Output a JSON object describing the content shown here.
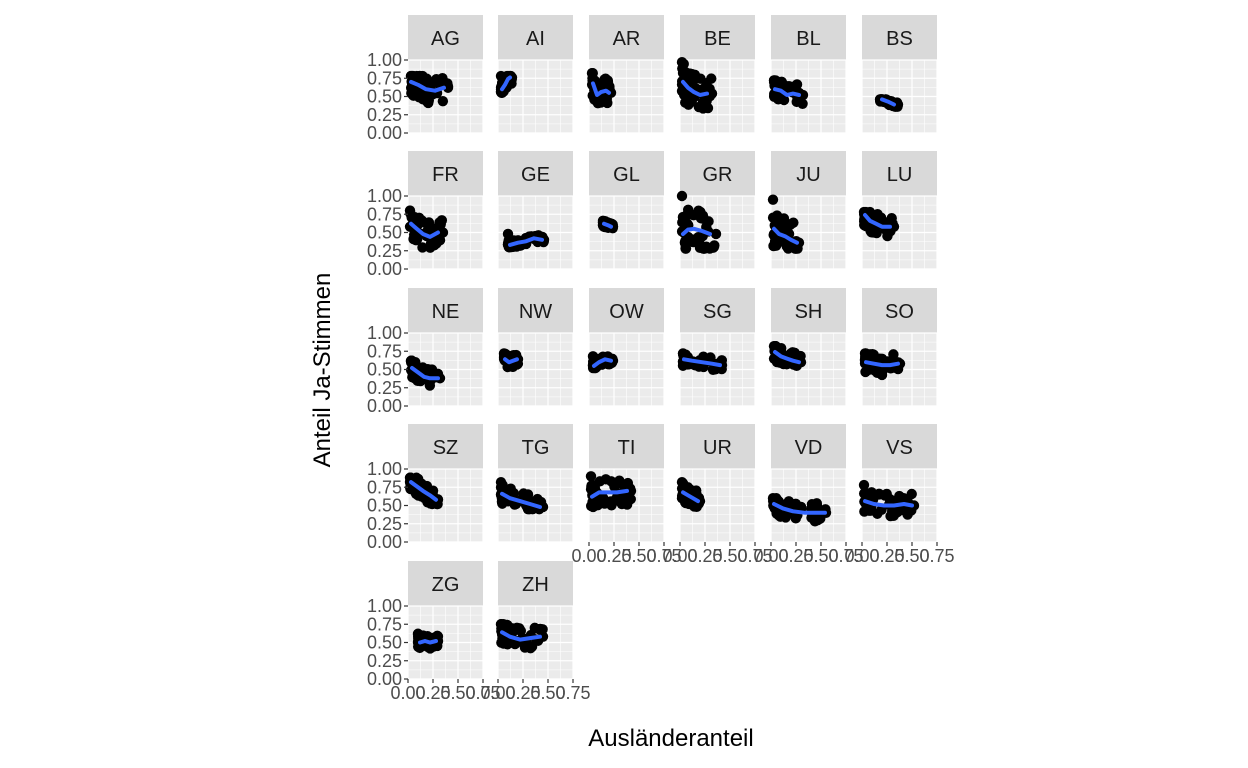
{
  "chart_data": {
    "type": "scatter",
    "facet_layout": "wrap",
    "ncol": 6,
    "xlabel": "Ausländeranteil",
    "ylabel": "Anteil Ja-Stimmen",
    "xlim": [
      0,
      0.75
    ],
    "ylim": [
      0,
      1
    ],
    "x_ticks": [
      0,
      0.25,
      0.5,
      0.75
    ],
    "x_tick_labels": [
      "0.00",
      "0.25",
      "0.50",
      "0.75"
    ],
    "y_ticks": [
      0,
      0.25,
      0.5,
      0.75,
      1
    ],
    "y_tick_labels": [
      "0.00",
      "0.25",
      "0.50",
      "0.75",
      "1.00"
    ],
    "grid": true,
    "smooth_color": "#3366FF",
    "point_color": "#000000",
    "panel_bg": "#EBEBEB",
    "strip_bg": "#D9D9D9",
    "panels": [
      {
        "label": "AG",
        "x_range": [
          0.03,
          0.4
        ],
        "y_range": [
          0.28,
          0.78
        ],
        "smooth": [
          [
            0.03,
            0.7
          ],
          [
            0.1,
            0.66
          ],
          [
            0.18,
            0.6
          ],
          [
            0.27,
            0.58
          ],
          [
            0.36,
            0.62
          ]
        ]
      },
      {
        "label": "AI",
        "x_range": [
          0.03,
          0.14
        ],
        "y_range": [
          0.55,
          0.78
        ],
        "smooth": [
          [
            0.04,
            0.6
          ],
          [
            0.07,
            0.66
          ],
          [
            0.1,
            0.74
          ],
          [
            0.12,
            0.76
          ]
        ]
      },
      {
        "label": "AR",
        "x_range": [
          0.03,
          0.22
        ],
        "y_range": [
          0.35,
          0.82
        ],
        "smooth": [
          [
            0.04,
            0.68
          ],
          [
            0.08,
            0.52
          ],
          [
            0.12,
            0.56
          ],
          [
            0.17,
            0.58
          ],
          [
            0.2,
            0.55
          ]
        ]
      },
      {
        "label": "BE",
        "x_range": [
          0.02,
          0.32
        ],
        "y_range": [
          0.28,
          0.97
        ],
        "smooth": [
          [
            0.03,
            0.7
          ],
          [
            0.08,
            0.62
          ],
          [
            0.14,
            0.56
          ],
          [
            0.2,
            0.52
          ],
          [
            0.27,
            0.54
          ]
        ]
      },
      {
        "label": "BL",
        "x_range": [
          0.03,
          0.32
        ],
        "y_range": [
          0.35,
          0.72
        ],
        "smooth": [
          [
            0.04,
            0.6
          ],
          [
            0.1,
            0.58
          ],
          [
            0.16,
            0.52
          ],
          [
            0.22,
            0.54
          ],
          [
            0.28,
            0.52
          ]
        ]
      },
      {
        "label": "BS",
        "x_range": [
          0.18,
          0.36
        ],
        "y_range": [
          0.36,
          0.46
        ],
        "smooth": [
          [
            0.2,
            0.46
          ],
          [
            0.26,
            0.43
          ],
          [
            0.32,
            0.39
          ]
        ]
      },
      {
        "label": "FR",
        "x_range": [
          0.02,
          0.35
        ],
        "y_range": [
          0.28,
          0.8
        ],
        "smooth": [
          [
            0.03,
            0.62
          ],
          [
            0.08,
            0.56
          ],
          [
            0.15,
            0.48
          ],
          [
            0.22,
            0.44
          ],
          [
            0.3,
            0.5
          ]
        ]
      },
      {
        "label": "GE",
        "x_range": [
          0.1,
          0.46
        ],
        "y_range": [
          0.3,
          0.48
        ],
        "smooth": [
          [
            0.12,
            0.33
          ],
          [
            0.2,
            0.36
          ],
          [
            0.28,
            0.38
          ],
          [
            0.36,
            0.42
          ],
          [
            0.44,
            0.4
          ]
        ]
      },
      {
        "label": "GL",
        "x_range": [
          0.14,
          0.24
        ],
        "y_range": [
          0.54,
          0.66
        ],
        "smooth": [
          [
            0.15,
            0.62
          ],
          [
            0.19,
            0.6
          ],
          [
            0.22,
            0.58
          ]
        ]
      },
      {
        "label": "GR",
        "x_range": [
          0.02,
          0.36
        ],
        "y_range": [
          0.28,
          1.0
        ],
        "smooth": [
          [
            0.03,
            0.48
          ],
          [
            0.08,
            0.54
          ],
          [
            0.14,
            0.55
          ],
          [
            0.22,
            0.52
          ],
          [
            0.3,
            0.48
          ]
        ]
      },
      {
        "label": "JU",
        "x_range": [
          0.02,
          0.28
        ],
        "y_range": [
          0.28,
          0.95
        ],
        "smooth": [
          [
            0.03,
            0.55
          ],
          [
            0.08,
            0.48
          ],
          [
            0.14,
            0.45
          ],
          [
            0.2,
            0.4
          ],
          [
            0.26,
            0.36
          ]
        ]
      },
      {
        "label": "LU",
        "x_range": [
          0.02,
          0.32
        ],
        "y_range": [
          0.38,
          0.78
        ],
        "smooth": [
          [
            0.03,
            0.74
          ],
          [
            0.08,
            0.66
          ],
          [
            0.14,
            0.62
          ],
          [
            0.2,
            0.58
          ],
          [
            0.28,
            0.58
          ]
        ]
      },
      {
        "label": "NE",
        "x_range": [
          0.03,
          0.32
        ],
        "y_range": [
          0.28,
          0.62
        ],
        "smooth": [
          [
            0.04,
            0.52
          ],
          [
            0.1,
            0.46
          ],
          [
            0.16,
            0.4
          ],
          [
            0.22,
            0.38
          ],
          [
            0.3,
            0.38
          ]
        ]
      },
      {
        "label": "NW",
        "x_range": [
          0.06,
          0.2
        ],
        "y_range": [
          0.5,
          0.72
        ],
        "smooth": [
          [
            0.07,
            0.64
          ],
          [
            0.11,
            0.6
          ],
          [
            0.15,
            0.62
          ],
          [
            0.19,
            0.64
          ]
        ]
      },
      {
        "label": "OW",
        "x_range": [
          0.04,
          0.24
        ],
        "y_range": [
          0.52,
          0.68
        ],
        "smooth": [
          [
            0.05,
            0.55
          ],
          [
            0.1,
            0.6
          ],
          [
            0.16,
            0.64
          ],
          [
            0.22,
            0.62
          ]
        ]
      },
      {
        "label": "SG",
        "x_range": [
          0.03,
          0.42
        ],
        "y_range": [
          0.48,
          0.72
        ],
        "smooth": [
          [
            0.04,
            0.64
          ],
          [
            0.12,
            0.62
          ],
          [
            0.22,
            0.6
          ],
          [
            0.32,
            0.58
          ],
          [
            0.4,
            0.56
          ]
        ]
      },
      {
        "label": "SH",
        "x_range": [
          0.03,
          0.3
        ],
        "y_range": [
          0.5,
          0.82
        ],
        "smooth": [
          [
            0.04,
            0.74
          ],
          [
            0.1,
            0.68
          ],
          [
            0.16,
            0.65
          ],
          [
            0.22,
            0.62
          ],
          [
            0.28,
            0.6
          ]
        ]
      },
      {
        "label": "SO",
        "x_range": [
          0.03,
          0.38
        ],
        "y_range": [
          0.35,
          0.72
        ],
        "smooth": [
          [
            0.04,
            0.6
          ],
          [
            0.12,
            0.58
          ],
          [
            0.2,
            0.56
          ],
          [
            0.28,
            0.56
          ],
          [
            0.36,
            0.58
          ]
        ]
      },
      {
        "label": "SZ",
        "x_range": [
          0.02,
          0.3
        ],
        "y_range": [
          0.52,
          0.88
        ],
        "smooth": [
          [
            0.03,
            0.82
          ],
          [
            0.09,
            0.76
          ],
          [
            0.15,
            0.7
          ],
          [
            0.22,
            0.64
          ],
          [
            0.28,
            0.58
          ]
        ]
      },
      {
        "label": "TG",
        "x_range": [
          0.03,
          0.45
        ],
        "y_range": [
          0.45,
          0.82
        ],
        "smooth": [
          [
            0.04,
            0.66
          ],
          [
            0.12,
            0.6
          ],
          [
            0.22,
            0.56
          ],
          [
            0.32,
            0.52
          ],
          [
            0.42,
            0.48
          ]
        ]
      },
      {
        "label": "TI",
        "x_range": [
          0.02,
          0.42
        ],
        "y_range": [
          0.4,
          0.9
        ],
        "smooth": [
          [
            0.03,
            0.62
          ],
          [
            0.1,
            0.68
          ],
          [
            0.18,
            0.68
          ],
          [
            0.28,
            0.68
          ],
          [
            0.38,
            0.7
          ]
        ]
      },
      {
        "label": "UR",
        "x_range": [
          0.02,
          0.2
        ],
        "y_range": [
          0.45,
          0.82
        ],
        "smooth": [
          [
            0.03,
            0.68
          ],
          [
            0.08,
            0.64
          ],
          [
            0.13,
            0.6
          ],
          [
            0.18,
            0.56
          ]
        ]
      },
      {
        "label": "VD",
        "x_range": [
          0.02,
          0.55
        ],
        "y_range": [
          0.25,
          0.6
        ],
        "smooth": [
          [
            0.03,
            0.52
          ],
          [
            0.12,
            0.46
          ],
          [
            0.22,
            0.42
          ],
          [
            0.34,
            0.4
          ],
          [
            0.46,
            0.4
          ],
          [
            0.54,
            0.4
          ]
        ]
      },
      {
        "label": "VS",
        "x_range": [
          0.02,
          0.52
        ],
        "y_range": [
          0.32,
          0.78
        ],
        "smooth": [
          [
            0.03,
            0.56
          ],
          [
            0.12,
            0.52
          ],
          [
            0.22,
            0.5
          ],
          [
            0.32,
            0.5
          ],
          [
            0.42,
            0.52
          ],
          [
            0.5,
            0.5
          ]
        ]
      },
      {
        "label": "ZG",
        "x_range": [
          0.1,
          0.3
        ],
        "y_range": [
          0.4,
          0.62
        ],
        "smooth": [
          [
            0.12,
            0.5
          ],
          [
            0.17,
            0.52
          ],
          [
            0.22,
            0.5
          ],
          [
            0.28,
            0.52
          ]
        ]
      },
      {
        "label": "ZH",
        "x_range": [
          0.03,
          0.45
        ],
        "y_range": [
          0.32,
          0.75
        ],
        "smooth": [
          [
            0.04,
            0.64
          ],
          [
            0.12,
            0.58
          ],
          [
            0.22,
            0.54
          ],
          [
            0.32,
            0.56
          ],
          [
            0.42,
            0.58
          ]
        ]
      }
    ]
  }
}
